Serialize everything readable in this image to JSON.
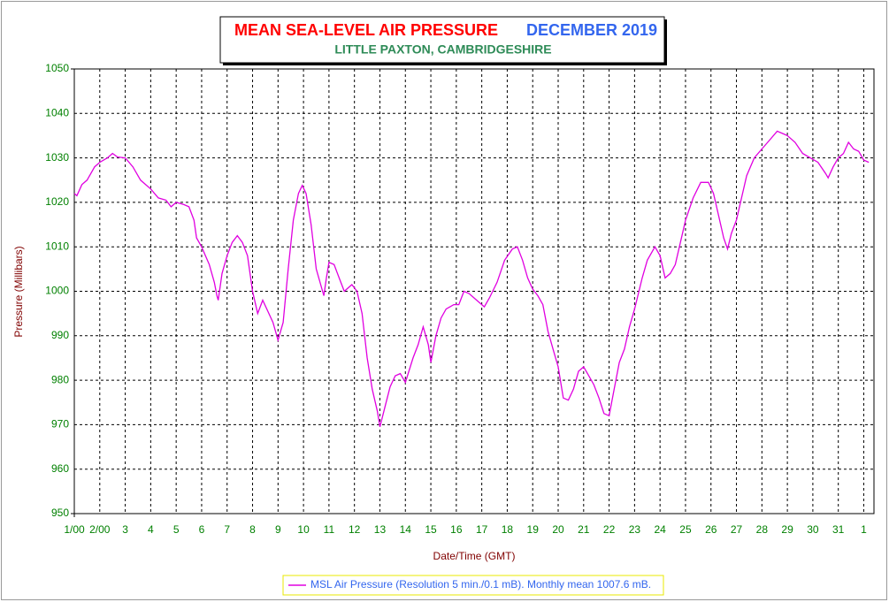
{
  "chart_data": {
    "type": "line",
    "title": "MEAN SEA-LEVEL AIR PRESSURE",
    "period": "DECEMBER 2019",
    "subtitle": "LITTLE PAXTON, CAMBRIDGESHIRE",
    "xlabel": "Date/Time (GMT)",
    "ylabel": "Pressure (Millibars)",
    "x": [
      1.0,
      1.1,
      1.3,
      1.5,
      1.8,
      2.0,
      2.3,
      2.5,
      2.7,
      3.0,
      3.3,
      3.6,
      4.0,
      4.3,
      4.6,
      4.8,
      5.0,
      5.3,
      5.5,
      5.7,
      5.8,
      6.0,
      6.3,
      6.5,
      6.6,
      6.65,
      6.8,
      7.0,
      7.2,
      7.4,
      7.6,
      7.8,
      8.0,
      8.2,
      8.4,
      8.6,
      8.8,
      9.0,
      9.2,
      9.4,
      9.6,
      9.8,
      9.95,
      10.1,
      10.3,
      10.5,
      10.8,
      10.9,
      11.0,
      11.2,
      11.4,
      11.6,
      11.9,
      12.1,
      12.3,
      12.5,
      12.7,
      12.9,
      13.0,
      13.2,
      13.4,
      13.6,
      13.8,
      14.0,
      14.3,
      14.5,
      14.7,
      14.9,
      15.0,
      15.2,
      15.4,
      15.6,
      15.9,
      16.1,
      16.3,
      16.5,
      16.8,
      17.1,
      17.3,
      17.6,
      17.9,
      18.2,
      18.4,
      18.6,
      18.8,
      19.0,
      19.2,
      19.4,
      19.6,
      19.8,
      20.0,
      20.2,
      20.4,
      20.6,
      20.8,
      21.0,
      21.2,
      21.4,
      21.6,
      21.8,
      22.0,
      22.2,
      22.4,
      22.6,
      22.8,
      23.0,
      23.3,
      23.5,
      23.8,
      24.0,
      24.2,
      24.4,
      24.6,
      24.8,
      25.0,
      25.3,
      25.6,
      25.9,
      26.1,
      26.3,
      26.5,
      26.65,
      26.8,
      27.0,
      27.2,
      27.4,
      27.7,
      28.0,
      28.3,
      28.6,
      28.8,
      29.0,
      29.3,
      29.6,
      29.9,
      30.2,
      30.5,
      30.6,
      30.8,
      31.0,
      31.2,
      31.4,
      31.6,
      31.8,
      32.0,
      32.2
    ],
    "series": [
      {
        "name": "MSL Air Pressure (Resolution 5 min./0.1 mB). Monthly mean 1007.6 mB.",
        "color": "#e000e0",
        "values": [
          1022,
          1021.5,
          1024,
          1025,
          1028,
          1029,
          1030,
          1031,
          1030.2,
          1030,
          1028,
          1025,
          1023,
          1021,
          1020.5,
          1019,
          1020,
          1019.5,
          1019,
          1016,
          1012,
          1010,
          1006,
          1002,
          999,
          998,
          1004,
          1008,
          1011,
          1012.5,
          1011,
          1008,
          1000,
          995,
          998,
          995.5,
          993,
          989,
          993,
          1005,
          1016,
          1022,
          1023.8,
          1022,
          1015,
          1005,
          999,
          1003,
          1006.5,
          1006,
          1003,
          1000,
          1001.5,
          1000,
          995,
          985,
          978,
          973,
          969.5,
          974,
          978.5,
          981,
          981.5,
          979.5,
          985,
          988,
          992,
          988,
          984,
          990,
          994,
          996,
          997,
          997,
          1000,
          999.5,
          998,
          996.5,
          998.5,
          1002,
          1007,
          1009.5,
          1010,
          1007,
          1003,
          1000.5,
          999,
          997,
          991,
          987,
          983,
          976,
          975.5,
          978,
          982,
          983,
          981,
          979,
          976,
          972.5,
          972,
          978,
          984,
          987,
          992,
          996,
          1003,
          1007,
          1010,
          1008,
          1003,
          1004,
          1006,
          1011,
          1016,
          1021,
          1024.5,
          1024.5,
          1022,
          1017,
          1012,
          1009.5,
          1013,
          1016,
          1021,
          1026,
          1030,
          1032,
          1034,
          1036,
          1035.5,
          1035,
          1033.5,
          1031,
          1030,
          1029,
          1026.5,
          1025.5,
          1028,
          1030,
          1031,
          1033.5,
          1032,
          1031.5,
          1029.5,
          1029
        ]
      }
    ],
    "xlim": [
      1,
      32.4
    ],
    "xticks": [
      {
        "value": 1,
        "label": "1/00"
      },
      {
        "value": 2,
        "label": "2/00"
      },
      3,
      4,
      5,
      6,
      7,
      8,
      9,
      10,
      11,
      12,
      13,
      14,
      15,
      16,
      17,
      18,
      19,
      20,
      21,
      22,
      23,
      24,
      25,
      26,
      27,
      28,
      29,
      30,
      31,
      {
        "value": 32,
        "label": "1"
      }
    ],
    "ylim": [
      950,
      1050
    ],
    "yticks": [
      950,
      960,
      970,
      980,
      990,
      1000,
      1010,
      1020,
      1030,
      1040,
      1050
    ],
    "grid": true
  }
}
